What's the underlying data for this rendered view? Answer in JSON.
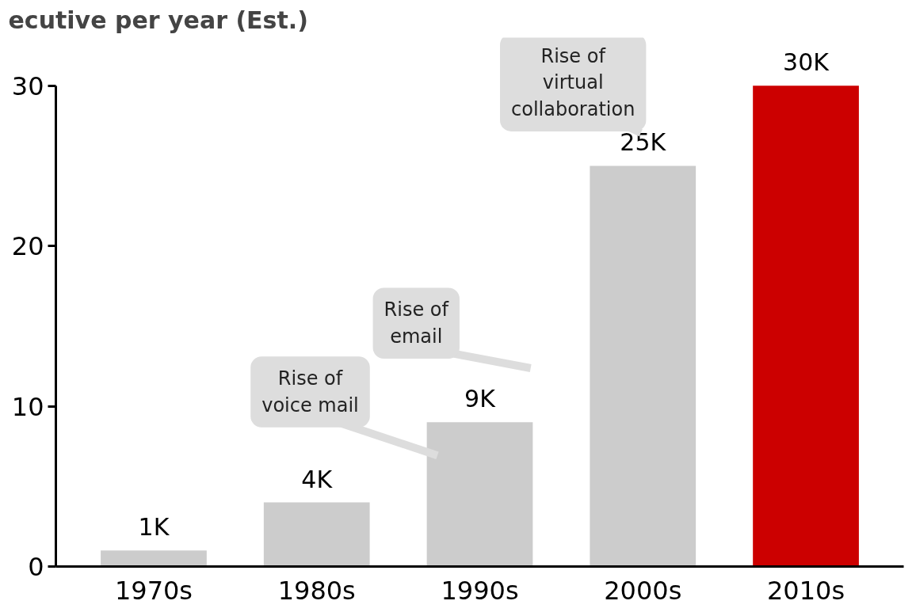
{
  "chart_data": {
    "type": "bar",
    "title": "ecutive per year (Est.)",
    "categories": [
      "1970s",
      "1980s",
      "1990s",
      "2000s",
      "2010s"
    ],
    "values": [
      1,
      4,
      9,
      25,
      30
    ],
    "colors": [
      "#cccccc",
      "#cccccc",
      "#cccccc",
      "#cccccc",
      "#cc0000"
    ],
    "value_labels": [
      "1K",
      "4K",
      "9K",
      "25K",
      "30K"
    ],
    "ylim": [
      0,
      30
    ],
    "yticks": [
      0,
      10,
      20,
      30
    ],
    "grid": false,
    "annotations": [
      "Rise of\nvoice mail",
      "Rise of\nemail",
      "Rise of\nvirtual\ncollaboration"
    ]
  }
}
